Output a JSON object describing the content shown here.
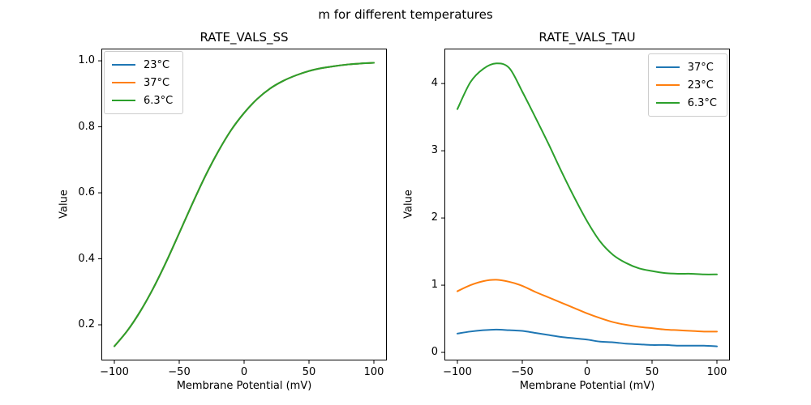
{
  "suptitle": "m for different temperatures",
  "chart_data": [
    {
      "type": "line",
      "title": "RATE_VALS_SS",
      "xlabel": "Membrane Potential (mV)",
      "ylabel": "Value",
      "xlim": [
        -110,
        110
      ],
      "ylim": [
        0.092,
        1.037
      ],
      "grid": false,
      "xticks": [
        -100,
        -50,
        0,
        50,
        100
      ],
      "xtick_labels": [
        "−100",
        "−50",
        "0",
        "50",
        "100"
      ],
      "yticks": [
        0.2,
        0.4,
        0.6,
        0.8,
        1.0
      ],
      "ytick_labels": [
        "0.2",
        "0.4",
        "0.6",
        "0.8",
        "1.0"
      ],
      "legend": {
        "position": "upper-left",
        "entries": [
          {
            "label": "23°C",
            "color": "#1f77b4"
          },
          {
            "label": "37°C",
            "color": "#ff7f0e"
          },
          {
            "label": "6.3°C",
            "color": "#2ca02c"
          }
        ]
      },
      "x": [
        -100,
        -90,
        -80,
        -70,
        -60,
        -50,
        -40,
        -30,
        -20,
        -10,
        0,
        10,
        20,
        30,
        40,
        50,
        60,
        70,
        80,
        90,
        100
      ],
      "series": [
        {
          "name": "23°C",
          "color": "#1f77b4",
          "values": [
            0.135,
            0.182,
            0.241,
            0.311,
            0.391,
            0.478,
            0.566,
            0.65,
            0.725,
            0.79,
            0.842,
            0.884,
            0.916,
            0.939,
            0.956,
            0.969,
            0.978,
            0.984,
            0.989,
            0.992,
            0.994
          ]
        },
        {
          "name": "37°C",
          "color": "#ff7f0e",
          "values": [
            0.135,
            0.182,
            0.241,
            0.311,
            0.391,
            0.478,
            0.566,
            0.65,
            0.725,
            0.79,
            0.842,
            0.884,
            0.916,
            0.939,
            0.956,
            0.969,
            0.978,
            0.984,
            0.989,
            0.992,
            0.994
          ]
        },
        {
          "name": "6.3°C",
          "color": "#2ca02c",
          "values": [
            0.135,
            0.182,
            0.241,
            0.311,
            0.391,
            0.478,
            0.566,
            0.65,
            0.725,
            0.79,
            0.842,
            0.884,
            0.916,
            0.939,
            0.956,
            0.969,
            0.978,
            0.984,
            0.989,
            0.992,
            0.994
          ]
        }
      ]
    },
    {
      "type": "line",
      "title": "RATE_VALS_TAU",
      "xlabel": "Membrane Potential (mV)",
      "ylabel": "Value",
      "xlim": [
        -110,
        110
      ],
      "ylim": [
        -0.12,
        4.52
      ],
      "grid": false,
      "xticks": [
        -100,
        -50,
        0,
        50,
        100
      ],
      "xtick_labels": [
        "−100",
        "−50",
        "0",
        "50",
        "100"
      ],
      "yticks": [
        0,
        1,
        2,
        3,
        4
      ],
      "ytick_labels": [
        "0",
        "1",
        "2",
        "3",
        "4"
      ],
      "legend": {
        "position": "upper-right",
        "entries": [
          {
            "label": "37°C",
            "color": "#1f77b4"
          },
          {
            "label": "23°C",
            "color": "#ff7f0e"
          },
          {
            "label": "6.3°C",
            "color": "#2ca02c"
          }
        ]
      },
      "x": [
        -100,
        -90,
        -80,
        -70,
        -60,
        -50,
        -40,
        -30,
        -20,
        -10,
        0,
        10,
        20,
        30,
        40,
        50,
        60,
        70,
        80,
        90,
        100
      ],
      "series": [
        {
          "name": "37°C",
          "color": "#1f77b4",
          "values": [
            0.28,
            0.31,
            0.33,
            0.34,
            0.33,
            0.32,
            0.29,
            0.26,
            0.23,
            0.21,
            0.19,
            0.16,
            0.15,
            0.13,
            0.12,
            0.11,
            0.11,
            0.1,
            0.1,
            0.1,
            0.09
          ]
        },
        {
          "name": "23°C",
          "color": "#ff7f0e",
          "values": [
            0.91,
            1.0,
            1.06,
            1.08,
            1.05,
            0.99,
            0.9,
            0.82,
            0.74,
            0.66,
            0.58,
            0.51,
            0.45,
            0.41,
            0.38,
            0.36,
            0.34,
            0.33,
            0.32,
            0.31,
            0.31
          ]
        },
        {
          "name": "6.3°C",
          "color": "#2ca02c",
          "values": [
            3.62,
            4.02,
            4.22,
            4.3,
            4.23,
            3.88,
            3.5,
            3.11,
            2.7,
            2.31,
            1.95,
            1.65,
            1.45,
            1.33,
            1.25,
            1.21,
            1.18,
            1.17,
            1.17,
            1.16,
            1.16
          ]
        }
      ]
    }
  ]
}
